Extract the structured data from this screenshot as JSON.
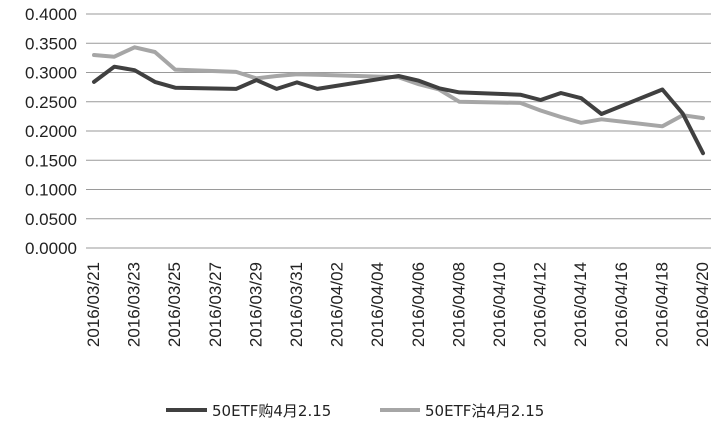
{
  "chart_data": {
    "type": "line",
    "title": "",
    "xlabel": "",
    "ylabel": "",
    "ylim": [
      0,
      0.4
    ],
    "y_ticks": [
      "0.0000",
      "0.0500",
      "0.1000",
      "0.1500",
      "0.2000",
      "0.2500",
      "0.3000",
      "0.3500",
      "0.4000"
    ],
    "x": [
      "2016/03/21",
      "2016/03/22",
      "2016/03/23",
      "2016/03/24",
      "2016/03/25",
      "2016/03/28",
      "2016/03/29",
      "2016/03/30",
      "2016/03/31",
      "2016/04/01",
      "2016/04/05",
      "2016/04/06",
      "2016/04/07",
      "2016/04/08",
      "2016/04/11",
      "2016/04/12",
      "2016/04/13",
      "2016/04/14",
      "2016/04/15",
      "2016/04/18",
      "2016/04/19",
      "2016/04/20"
    ],
    "x_tick_labels": [
      "2016/03/21",
      "2016/03/23",
      "2016/03/25",
      "2016/03/27",
      "2016/03/29",
      "2016/03/31",
      "2016/04/02",
      "2016/04/04",
      "2016/04/06",
      "2016/04/08",
      "2016/04/10",
      "2016/04/12",
      "2016/04/14",
      "2016/04/16",
      "2016/04/18",
      "2016/04/20"
    ],
    "grid": true,
    "legend_position": "bottom",
    "series": [
      {
        "name": "50ETF购4月2.15",
        "color": "#404040",
        "values": [
          0.284,
          0.31,
          0.304,
          0.284,
          0.274,
          0.272,
          0.287,
          0.272,
          0.283,
          0.272,
          0.294,
          0.286,
          0.273,
          0.266,
          0.262,
          0.253,
          0.265,
          0.256,
          0.229,
          0.271,
          0.23,
          0.162
        ]
      },
      {
        "name": "50ETF沽4月2.15",
        "color": "#a6a6a6",
        "values": [
          0.33,
          0.327,
          0.343,
          0.335,
          0.305,
          0.301,
          0.29,
          0.294,
          0.297,
          0.296,
          0.292,
          0.28,
          0.271,
          0.25,
          0.248,
          0.235,
          0.224,
          0.214,
          0.22,
          0.208,
          0.227,
          0.222
        ]
      }
    ]
  }
}
